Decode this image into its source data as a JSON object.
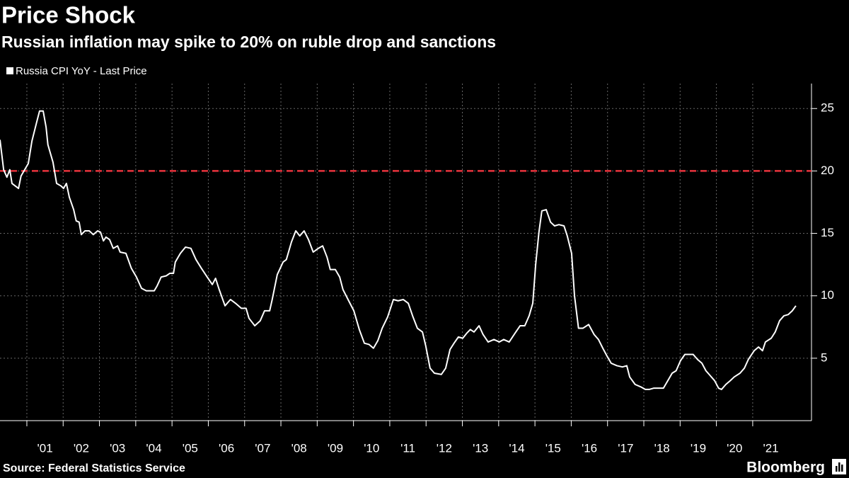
{
  "chart_data": {
    "type": "line",
    "title": "Price Shock",
    "subtitle": "Russian inflation may spike to 20% on ruble drop and sanctions",
    "source": "Source: Federal Statistics Service",
    "brand": "Bloomberg",
    "x": [
      2000.26,
      2000.36,
      2000.45,
      2000.53,
      2000.59,
      2000.77,
      2000.84,
      2001.04,
      2001.14,
      2001.27,
      2001.35,
      2001.45,
      2001.53,
      2001.58,
      2001.72,
      2001.82,
      2001.94,
      2002.01,
      2002.09,
      2002.17,
      2002.29,
      2002.36,
      2002.44,
      2002.5,
      2002.6,
      2002.72,
      2002.83,
      2002.95,
      2003.03,
      2003.11,
      2003.18,
      2003.28,
      2003.38,
      2003.5,
      2003.57,
      2003.73,
      2003.88,
      2004.02,
      2004.16,
      2004.29,
      2004.41,
      2004.51,
      2004.59,
      2004.7,
      2004.84,
      2004.94,
      2005.04,
      2005.09,
      2005.23,
      2005.37,
      2005.52,
      2005.66,
      2005.81,
      2005.97,
      2006.11,
      2006.2,
      2006.3,
      2006.46,
      2006.61,
      2006.75,
      2006.91,
      2007.04,
      2007.12,
      2007.28,
      2007.43,
      2007.55,
      2007.69,
      2007.76,
      2007.9,
      2008.06,
      2008.15,
      2008.29,
      2008.41,
      2008.52,
      2008.64,
      2008.76,
      2008.89,
      2009.03,
      2009.15,
      2009.27,
      2009.36,
      2009.5,
      2009.62,
      2009.71,
      2009.85,
      2010.01,
      2010.16,
      2010.3,
      2010.43,
      2010.55,
      2010.67,
      2010.79,
      2010.94,
      2011.1,
      2011.23,
      2011.37,
      2011.51,
      2011.64,
      2011.76,
      2011.9,
      2011.99,
      2012.11,
      2012.23,
      2012.42,
      2012.54,
      2012.66,
      2012.77,
      2012.89,
      2013.01,
      2013.12,
      2013.22,
      2013.32,
      2013.46,
      2013.57,
      2013.71,
      2013.87,
      2014.02,
      2014.14,
      2014.29,
      2014.45,
      2014.59,
      2014.72,
      2014.84,
      2014.94,
      2015.02,
      2015.11,
      2015.19,
      2015.31,
      2015.43,
      2015.54,
      2015.66,
      2015.8,
      2015.89,
      2016.01,
      2016.09,
      2016.2,
      2016.32,
      2016.48,
      2016.63,
      2016.75,
      2016.87,
      2016.98,
      2017.1,
      2017.26,
      2017.41,
      2017.53,
      2017.61,
      2017.76,
      2017.92,
      2018.04,
      2018.15,
      2018.27,
      2018.43,
      2018.54,
      2018.66,
      2018.78,
      2018.89,
      2019.01,
      2019.13,
      2019.25,
      2019.36,
      2019.48,
      2019.6,
      2019.71,
      2019.83,
      2019.95,
      2020.06,
      2020.14,
      2020.26,
      2020.38,
      2020.49,
      2020.65,
      2020.77,
      2020.88,
      2021.04,
      2021.16,
      2021.27,
      2021.35,
      2021.51,
      2021.62,
      2021.74,
      2021.86,
      2021.98,
      2022.09,
      2022.19
    ],
    "series": [
      {
        "name": "Russia CPI YoY - Last Price",
        "color": "#ffffff",
        "values": [
          22.5,
          20.1,
          19.5,
          20.1,
          19.0,
          18.6,
          19.6,
          20.6,
          22.4,
          23.9,
          24.8,
          24.8,
          23.5,
          22.1,
          20.7,
          19.0,
          18.8,
          18.6,
          19.0,
          17.9,
          16.9,
          16.0,
          15.9,
          14.9,
          15.2,
          15.2,
          14.9,
          15.2,
          15.1,
          14.4,
          14.7,
          14.5,
          13.8,
          14.0,
          13.5,
          13.4,
          12.2,
          11.5,
          10.6,
          10.4,
          10.4,
          10.4,
          10.8,
          11.5,
          11.6,
          11.8,
          11.8,
          12.7,
          13.4,
          13.9,
          13.8,
          12.9,
          12.2,
          11.5,
          10.9,
          11.4,
          10.5,
          9.2,
          9.7,
          9.4,
          9.0,
          9.0,
          8.2,
          7.6,
          8.0,
          8.8,
          8.8,
          9.7,
          11.7,
          12.7,
          12.9,
          14.3,
          15.2,
          14.8,
          15.2,
          14.5,
          13.5,
          13.8,
          14.0,
          13.1,
          12.1,
          12.1,
          11.5,
          10.5,
          9.7,
          8.8,
          7.3,
          6.2,
          6.1,
          5.8,
          6.4,
          7.4,
          8.3,
          9.7,
          9.6,
          9.7,
          9.4,
          8.3,
          7.4,
          7.1,
          6.0,
          4.2,
          3.8,
          3.7,
          4.2,
          5.7,
          6.2,
          6.7,
          6.6,
          7.0,
          7.3,
          7.1,
          7.6,
          6.9,
          6.3,
          6.5,
          6.3,
          6.5,
          6.3,
          7.0,
          7.6,
          7.6,
          8.4,
          9.4,
          12.5,
          15.1,
          16.8,
          16.9,
          15.9,
          15.6,
          15.7,
          15.6,
          14.8,
          13.4,
          10.0,
          7.4,
          7.4,
          7.7,
          6.9,
          6.5,
          5.8,
          5.2,
          4.6,
          4.4,
          4.3,
          4.4,
          3.5,
          2.9,
          2.7,
          2.5,
          2.5,
          2.6,
          2.6,
          2.6,
          3.2,
          3.8,
          4.0,
          4.8,
          5.3,
          5.3,
          5.3,
          4.9,
          4.6,
          4.0,
          3.6,
          3.2,
          2.6,
          2.5,
          2.9,
          3.2,
          3.5,
          3.8,
          4.2,
          4.9,
          5.6,
          5.9,
          5.6,
          6.3,
          6.6,
          7.1,
          8.0,
          8.4,
          8.5,
          8.8,
          9.2
        ]
      }
    ],
    "reference_line": {
      "value": 20,
      "color": "#e8333c"
    },
    "xlim": [
      2000.26,
      2022.62
    ],
    "xticks": [
      {
        "value": 2001,
        "label": "'01"
      },
      {
        "value": 2002,
        "label": "'02"
      },
      {
        "value": 2003,
        "label": "'03"
      },
      {
        "value": 2004,
        "label": "'04"
      },
      {
        "value": 2005,
        "label": "'05"
      },
      {
        "value": 2006,
        "label": "'06"
      },
      {
        "value": 2007,
        "label": "'07"
      },
      {
        "value": 2008,
        "label": "'08"
      },
      {
        "value": 2009,
        "label": "'09"
      },
      {
        "value": 2010,
        "label": "'10"
      },
      {
        "value": 2011,
        "label": "'11"
      },
      {
        "value": 2012,
        "label": "'12"
      },
      {
        "value": 2013,
        "label": "'13"
      },
      {
        "value": 2014,
        "label": "'14"
      },
      {
        "value": 2015,
        "label": "'15"
      },
      {
        "value": 2016,
        "label": "'16"
      },
      {
        "value": 2017,
        "label": "'17"
      },
      {
        "value": 2018,
        "label": "'18"
      },
      {
        "value": 2019,
        "label": "'19"
      },
      {
        "value": 2020,
        "label": "'20"
      },
      {
        "value": 2021,
        "label": "'21"
      }
    ],
    "ylim": [
      0,
      27
    ],
    "yticks": [
      5,
      10,
      15,
      20,
      25
    ],
    "grid": true
  }
}
